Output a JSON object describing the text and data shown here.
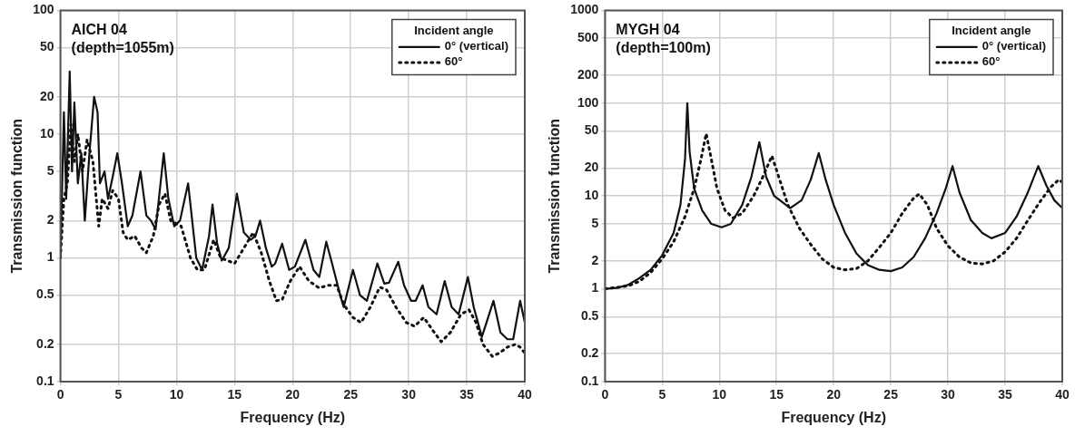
{
  "chart_data": [
    {
      "type": "line",
      "annotations": [
        "AICH 04",
        "(depth=1055m)"
      ],
      "xlabel": "Frequency (Hz)",
      "ylabel": "Transmission function",
      "legend": "top right",
      "legend_title": "Incident angle",
      "log": "y",
      "grid": true,
      "marker": "none",
      "xlim": [
        0,
        40
      ],
      "xticks": [
        0,
        5,
        10,
        15,
        20,
        25,
        30,
        35,
        40
      ],
      "ylim": [
        0.1,
        100
      ],
      "yticks": [
        0.1,
        0.2,
        0.5,
        1,
        2,
        5,
        10,
        20,
        50,
        100
      ],
      "series": [
        {
          "name": "0° (vertical)",
          "color": "#111111",
          "line_style": "solid",
          "x": [
            0,
            0.3,
            0.5,
            0.8,
            1.0,
            1.2,
            1.5,
            1.8,
            2.1,
            2.5,
            2.9,
            3.2,
            3.4,
            3.8,
            4.1,
            4.5,
            4.9,
            5.3,
            5.8,
            6.2,
            6.9,
            7.4,
            7.8,
            8.2,
            8.9,
            9.3,
            9.8,
            10.3,
            11.0,
            11.7,
            12.2,
            12.8,
            13.1,
            13.5,
            13.9,
            14.5,
            15.2,
            15.8,
            16.4,
            16.8,
            17.2,
            17.7,
            18.2,
            18.5,
            19.1,
            19.7,
            20.2,
            21.1,
            21.8,
            22.3,
            22.9,
            23.4,
            24.1,
            24.4,
            25.2,
            25.8,
            26.4,
            27.3,
            27.9,
            28.3,
            29.1,
            29.6,
            30.2,
            30.6,
            31.2,
            31.7,
            32.4,
            33.1,
            33.7,
            34.3,
            35.1,
            35.6,
            36.3,
            36.7,
            37.3,
            37.9,
            38.5,
            39.0,
            39.6,
            40
          ],
          "values": [
            1,
            15,
            3,
            32,
            5,
            18,
            4,
            7,
            2,
            7,
            20,
            15,
            4,
            5,
            3,
            4.5,
            7,
            4,
            1.8,
            2.2,
            5,
            2.2,
            2,
            1.7,
            7,
            3,
            1.8,
            2,
            4,
            1,
            0.8,
            1.5,
            2.7,
            1.3,
            0.95,
            1.2,
            3.3,
            1.6,
            1.4,
            1.5,
            2,
            1.2,
            0.85,
            0.9,
            1.3,
            0.8,
            0.85,
            1.4,
            0.8,
            0.7,
            1.35,
            0.9,
            0.5,
            0.4,
            0.8,
            0.5,
            0.45,
            0.9,
            0.62,
            0.63,
            0.93,
            0.6,
            0.45,
            0.45,
            0.6,
            0.4,
            0.35,
            0.65,
            0.4,
            0.35,
            0.7,
            0.4,
            0.23,
            0.3,
            0.45,
            0.25,
            0.22,
            0.22,
            0.45,
            0.3
          ]
        },
        {
          "name": "60°",
          "color": "#111111",
          "line_style": "dotted",
          "x": [
            0,
            0.3,
            0.6,
            0.9,
            1.2,
            1.5,
            1.9,
            2.3,
            2.8,
            3.3,
            3.6,
            4.1,
            4.5,
            5.0,
            5.4,
            5.8,
            6.4,
            7.0,
            7.4,
            8.0,
            8.5,
            9.0,
            9.5,
            10.4,
            11.2,
            11.8,
            12.4,
            13.2,
            13.8,
            14.4,
            15.0,
            15.8,
            16.6,
            17.3,
            18.0,
            18.6,
            19.1,
            19.8,
            20.6,
            21.4,
            22.3,
            23.0,
            23.8,
            24.4,
            25.2,
            25.9,
            26.7,
            27.5,
            28.1,
            28.9,
            29.8,
            30.5,
            31.3,
            32.2,
            32.8,
            33.6,
            34.5,
            35.2,
            35.8,
            36.4,
            37.2,
            37.8,
            38.5,
            39.2,
            39.6,
            40
          ],
          "values": [
            1,
            3,
            4,
            12,
            6,
            10,
            5,
            9,
            6,
            1.8,
            3,
            2.5,
            3.5,
            3,
            1.6,
            1.4,
            1.5,
            1.2,
            1.1,
            1.5,
            2.7,
            3.3,
            2,
            1.8,
            1.0,
            0.8,
            0.8,
            1.4,
            1.0,
            0.95,
            0.9,
            1.2,
            1.6,
            1.1,
            0.65,
            0.45,
            0.46,
            0.65,
            0.85,
            0.65,
            0.57,
            0.6,
            0.6,
            0.42,
            0.33,
            0.3,
            0.4,
            0.58,
            0.55,
            0.4,
            0.3,
            0.28,
            0.33,
            0.25,
            0.21,
            0.25,
            0.35,
            0.38,
            0.3,
            0.2,
            0.16,
            0.17,
            0.19,
            0.2,
            0.19,
            0.17
          ]
        }
      ]
    },
    {
      "type": "line",
      "annotations": [
        "MYGH 04",
        "(depth=100m)"
      ],
      "xlabel": "Frequency (Hz)",
      "ylabel": "Transmission function",
      "legend": "top right",
      "legend_title": "Incident angle",
      "log": "y",
      "grid": true,
      "marker": "none",
      "xlim": [
        0,
        40
      ],
      "xticks": [
        0,
        5,
        10,
        15,
        20,
        25,
        30,
        35,
        40
      ],
      "ylim": [
        0.1,
        1000
      ],
      "yticks": [
        0.1,
        0.2,
        0.5,
        1,
        2,
        5,
        10,
        20,
        50,
        100,
        200,
        500,
        1000
      ],
      "series": [
        {
          "name": "0° (vertical)",
          "color": "#111111",
          "line_style": "solid",
          "x": [
            0,
            1,
            2,
            3,
            4,
            5,
            6,
            6.6,
            7.0,
            7.2,
            7.4,
            7.8,
            8.5,
            9.3,
            10.2,
            11,
            12,
            12.8,
            13.5,
            14.1,
            14.8,
            16.2,
            17.2,
            18,
            18.7,
            19.3,
            20,
            21,
            22,
            23,
            24,
            25,
            26,
            27,
            28,
            29,
            29.8,
            30.4,
            31,
            32,
            33,
            33.8,
            35,
            36,
            37,
            37.9,
            38.6,
            39.3,
            40
          ],
          "values": [
            1,
            1.02,
            1.1,
            1.3,
            1.6,
            2.3,
            4,
            8,
            25,
            100,
            30,
            12,
            7,
            5,
            4.6,
            5,
            8,
            16,
            38,
            16,
            10,
            7.4,
            9,
            15,
            29,
            15,
            8,
            4,
            2.4,
            1.8,
            1.6,
            1.55,
            1.7,
            2.2,
            3.5,
            6.5,
            12,
            21,
            11,
            5.5,
            4,
            3.5,
            4,
            6,
            11,
            21,
            13,
            9,
            7.4
          ]
        },
        {
          "name": "60°",
          "color": "#111111",
          "line_style": "dotted",
          "x": [
            0,
            2,
            3,
            4,
            5,
            6,
            7,
            7.8,
            8.4,
            8.85,
            9.3,
            9.8,
            10.5,
            11.2,
            12,
            13,
            13.8,
            14.6,
            15.2,
            16,
            17,
            18,
            19,
            20,
            21,
            22,
            23,
            24,
            25,
            26,
            27,
            27.5,
            28.2,
            29,
            30,
            31,
            32,
            33,
            34,
            35,
            36,
            37,
            38,
            39,
            39.7,
            40
          ],
          "values": [
            1,
            1.07,
            1.2,
            1.5,
            2.1,
            3.2,
            6,
            12,
            25,
            47,
            25,
            12,
            7,
            5.8,
            6.5,
            10,
            16,
            27,
            16,
            8,
            4.5,
            3,
            2.1,
            1.7,
            1.6,
            1.65,
            2,
            2.8,
            4,
            6.5,
            9.5,
            10.5,
            8,
            4.5,
            2.9,
            2.2,
            1.9,
            1.85,
            2,
            2.5,
            3.5,
            5.5,
            8.5,
            12.5,
            15,
            14
          ]
        }
      ]
    }
  ]
}
